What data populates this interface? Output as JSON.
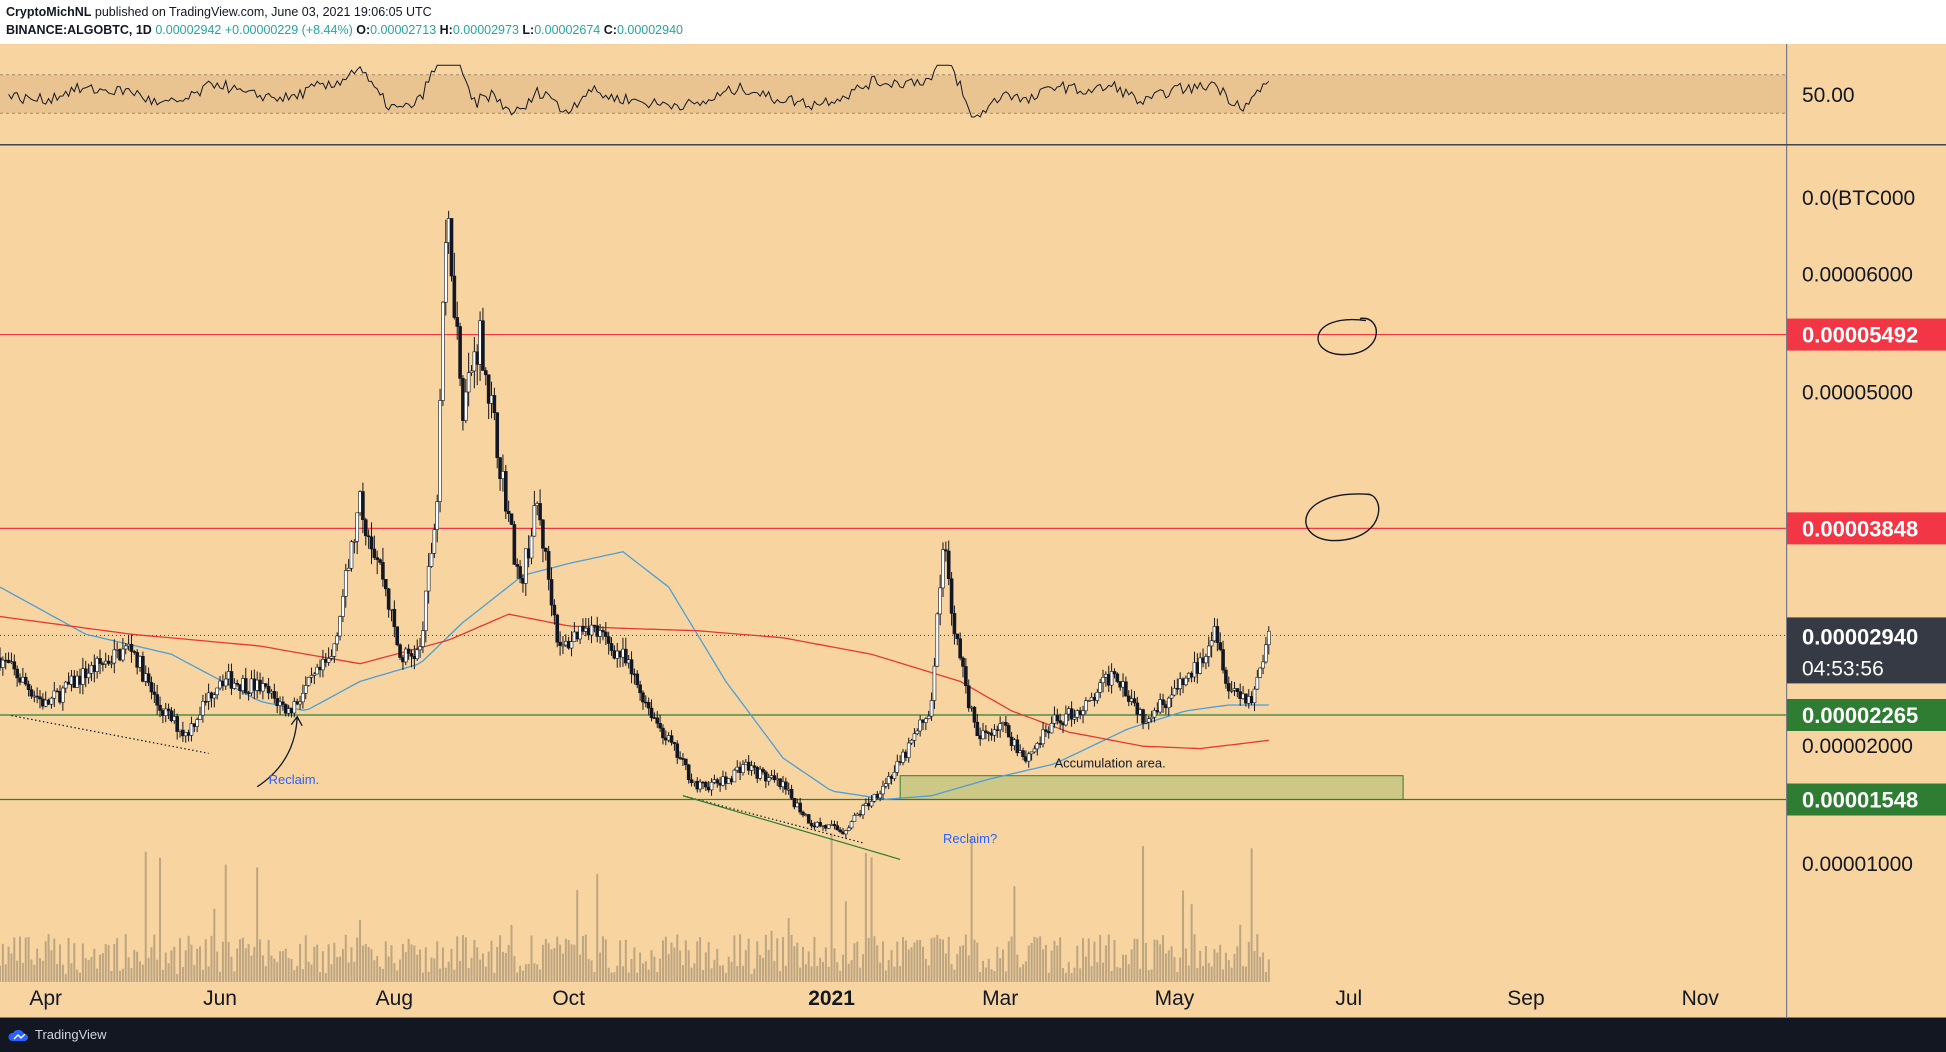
{
  "header": {
    "publisher": "CryptoMichNL",
    "published_text": "published on TradingView.com, June 03, 2021 19:06:05 UTC",
    "symbol": "BINANCE:ALGOBTC, 1D",
    "last": "0.00002942",
    "change": "+0.00000229 (+8.44%)",
    "o_label": "O:",
    "o_value": "0.00002713",
    "h_label": "H:",
    "h_value": "0.00002973",
    "l_label": "L:",
    "l_value": "0.00002674",
    "c_label": "C:",
    "c_value": "0.00002940"
  },
  "footer": {
    "brand": "TradingView"
  },
  "colors": {
    "background": "#f8d5a0",
    "resistance": "#f23645",
    "support": "#2e7d32",
    "current_price_badge": "#363a45",
    "ma_fast": "#4a9fd8",
    "ma_slow": "#e53935",
    "volume": "#8c7d68",
    "candle": "#131722"
  },
  "chart_data": {
    "type": "candlestick",
    "symbol": "ALGOBTC",
    "timeframe": "1D",
    "ylim": [
      0.0,
      7.1e-05
    ],
    "y_tick_labels": [
      "0.00001000",
      "0.00002000",
      "0.00005000",
      "0.00006000"
    ],
    "y_tick_values": [
      1e-05,
      2e-05,
      5e-05,
      6e-05
    ],
    "y_top_label": "0.0(BTC000",
    "x_tick_labels": [
      "Apr",
      "Jun",
      "Aug",
      "Oct",
      "2021",
      "Mar",
      "May",
      "Jul",
      "Sep",
      "Nov"
    ],
    "x_tick_dates": [
      "2020-04-01",
      "2020-06-01",
      "2020-08-01",
      "2020-10-01",
      "2021-01-01",
      "2021-03-01",
      "2021-05-01",
      "2021-07-01",
      "2021-09-01",
      "2021-11-01"
    ],
    "x_range": [
      "2020-03-16",
      "2021-12-01"
    ],
    "last_date": "2021-06-03",
    "price_path": [
      [
        "2020-03-16",
        2.75e-05
      ],
      [
        "2020-04-01",
        2.35e-05
      ],
      [
        "2020-04-15",
        2.62e-05
      ],
      [
        "2020-05-01",
        2.85e-05
      ],
      [
        "2020-05-10",
        2.35e-05
      ],
      [
        "2020-05-20",
        2.1e-05
      ],
      [
        "2020-06-01",
        2.58e-05
      ],
      [
        "2020-06-15",
        2.5e-05
      ],
      [
        "2020-06-25",
        2.3e-05
      ],
      [
        "2020-07-10",
        2.75e-05
      ],
      [
        "2020-07-20",
        4.05e-05
      ],
      [
        "2020-07-28",
        3.45e-05
      ],
      [
        "2020-08-03",
        2.75e-05
      ],
      [
        "2020-08-10",
        2.8e-05
      ],
      [
        "2020-08-16",
        4.1e-05
      ],
      [
        "2020-08-18",
        5.8e-05
      ],
      [
        "2020-08-20",
        6.4e-05
      ],
      [
        "2020-08-25",
        4.9e-05
      ],
      [
        "2020-08-31",
        5.5e-05
      ],
      [
        "2020-09-07",
        4.4e-05
      ],
      [
        "2020-09-14",
        3.35e-05
      ],
      [
        "2020-09-20",
        4.05e-05
      ],
      [
        "2020-09-28",
        2.8e-05
      ],
      [
        "2020-10-07",
        3.05e-05
      ],
      [
        "2020-10-20",
        2.75e-05
      ],
      [
        "2020-11-01",
        2.2e-05
      ],
      [
        "2020-11-15",
        1.65e-05
      ],
      [
        "2020-11-25",
        1.7e-05
      ],
      [
        "2020-12-01",
        1.85e-05
      ],
      [
        "2020-12-15",
        1.65e-05
      ],
      [
        "2020-12-25",
        1.35e-05
      ],
      [
        "2021-01-05",
        1.28e-05
      ],
      [
        "2021-01-15",
        1.55e-05
      ],
      [
        "2021-01-25",
        1.85e-05
      ],
      [
        "2021-02-05",
        2.35e-05
      ],
      [
        "2021-02-09",
        3.75e-05
      ],
      [
        "2021-02-14",
        2.85e-05
      ],
      [
        "2021-02-21",
        2.05e-05
      ],
      [
        "2021-03-01",
        2.2e-05
      ],
      [
        "2021-03-10",
        1.9e-05
      ],
      [
        "2021-03-20",
        2.2e-05
      ],
      [
        "2021-04-01",
        2.35e-05
      ],
      [
        "2021-04-10",
        2.65e-05
      ],
      [
        "2021-04-20",
        2.25e-05
      ],
      [
        "2021-05-01",
        2.45e-05
      ],
      [
        "2021-05-10",
        2.7e-05
      ],
      [
        "2021-05-15",
        3.05e-05
      ],
      [
        "2021-05-20",
        2.5e-05
      ],
      [
        "2021-05-28",
        2.4e-05
      ],
      [
        "2021-06-03",
        2.94e-05
      ]
    ],
    "ma_fast": [
      [
        "2020-03-16",
        3.35e-05
      ],
      [
        "2020-04-15",
        2.95e-05
      ],
      [
        "2020-05-15",
        2.78e-05
      ],
      [
        "2020-06-15",
        2.38e-05
      ],
      [
        "2020-07-01",
        2.3e-05
      ],
      [
        "2020-07-20",
        2.55e-05
      ],
      [
        "2020-08-10",
        2.7e-05
      ],
      [
        "2020-08-25",
        3.05e-05
      ],
      [
        "2020-09-15",
        3.45e-05
      ],
      [
        "2020-10-01",
        3.55e-05
      ],
      [
        "2020-10-20",
        3.65e-05
      ],
      [
        "2020-11-05",
        3.35e-05
      ],
      [
        "2020-11-25",
        2.55e-05
      ],
      [
        "2020-12-15",
        1.9e-05
      ],
      [
        "2021-01-01",
        1.62e-05
      ],
      [
        "2021-01-20",
        1.55e-05
      ],
      [
        "2021-02-05",
        1.58e-05
      ],
      [
        "2021-02-25",
        1.72e-05
      ],
      [
        "2021-03-20",
        1.85e-05
      ],
      [
        "2021-04-15",
        2.15e-05
      ],
      [
        "2021-05-05",
        2.3e-05
      ],
      [
        "2021-05-20",
        2.35e-05
      ],
      [
        "2021-06-03",
        2.35e-05
      ]
    ],
    "ma_slow": [
      [
        "2020-03-16",
        3.1e-05
      ],
      [
        "2020-05-01",
        2.95e-05
      ],
      [
        "2020-06-15",
        2.85e-05
      ],
      [
        "2020-07-20",
        2.7e-05
      ],
      [
        "2020-08-20",
        2.9e-05
      ],
      [
        "2020-09-10",
        3.12e-05
      ],
      [
        "2020-10-01",
        3.02e-05
      ],
      [
        "2020-10-20",
        3e-05
      ],
      [
        "2020-11-15",
        2.98e-05
      ],
      [
        "2020-12-15",
        2.92e-05
      ],
      [
        "2021-01-15",
        2.78e-05
      ],
      [
        "2021-02-15",
        2.55e-05
      ],
      [
        "2021-03-05",
        2.3e-05
      ],
      [
        "2021-03-25",
        2.12e-05
      ],
      [
        "2021-04-20",
        2e-05
      ],
      [
        "2021-05-10",
        1.98e-05
      ],
      [
        "2021-06-03",
        2.05e-05
      ]
    ],
    "horizontal_levels": [
      {
        "value": 5.492e-05,
        "label": "0.00005492",
        "kind": "resistance"
      },
      {
        "value": 3.848e-05,
        "label": "0.00003848",
        "kind": "resistance"
      },
      {
        "value": 2.265e-05,
        "label": "0.00002265",
        "kind": "support"
      },
      {
        "value": 1.548e-05,
        "label": "0.00001548",
        "kind": "support"
      }
    ],
    "current_price": {
      "value": 2.94e-05,
      "label": "0.00002940",
      "countdown": "04:53:56"
    },
    "accumulation_zone": {
      "from": "2021-01-25",
      "to": "2021-07-20",
      "low": 1.548e-05,
      "high": 1.75e-05
    },
    "annotations": [
      {
        "text": "Reclaim.",
        "date": "2020-06-18",
        "value": 1.68e-05
      },
      {
        "text": "Reclaim?",
        "date": "2021-02-09",
        "value": 1.18e-05
      },
      {
        "text": "Accumulation area.",
        "date": "2021-03-20",
        "value": 1.82e-05
      }
    ],
    "rsi": {
      "ylim": [
        0,
        100
      ],
      "label": "50.00",
      "band": [
        30,
        70
      ]
    }
  }
}
